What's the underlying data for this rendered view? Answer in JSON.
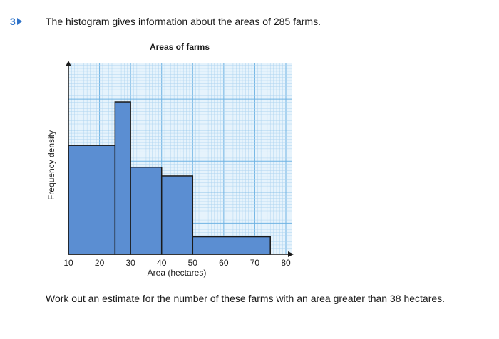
{
  "question": {
    "number": "3",
    "intro": "The histogram gives information about the areas of 285 farms.",
    "task": "Work out an estimate for the number of these farms with an area greater than 38 hectares."
  },
  "chart_data": {
    "type": "bar",
    "title": "Areas of farms",
    "xlabel": "Area (hectares)",
    "ylabel": "Frequency density",
    "xlim": [
      10,
      80
    ],
    "ylim": [
      0,
      8.8
    ],
    "x_ticks": [
      10,
      20,
      30,
      40,
      50,
      60,
      70,
      80
    ],
    "y_ticks_shown": false,
    "grid": true,
    "bars": [
      {
        "x0": 10,
        "x1": 25,
        "value": 5.0
      },
      {
        "x0": 25,
        "x1": 30,
        "value": 7.0
      },
      {
        "x0": 30,
        "x1": 40,
        "value": 4.0
      },
      {
        "x0": 40,
        "x1": 50,
        "value": 3.6
      },
      {
        "x0": 50,
        "x1": 75,
        "value": 0.8
      }
    ],
    "colors": {
      "bar_fill": "#5b8ed2",
      "bar_stroke": "#1a1a1a",
      "grid_fine": "#aed4f0",
      "grid_major": "#6fb3e3",
      "grid_bg": "#e6f3fc"
    }
  }
}
